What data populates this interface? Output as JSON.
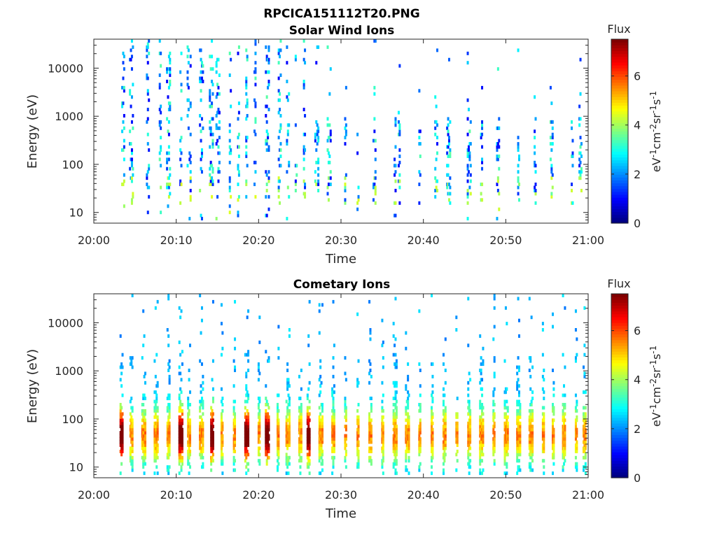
{
  "figure": {
    "filename_title": "RPCICA151112T20.PNG"
  },
  "chart_data": [
    {
      "type": "heatmap",
      "title": "Solar Wind Ions",
      "xlabel": "Time",
      "ylabel": "Energy (eV)",
      "y_scale": "log",
      "ylim": [
        6,
        40000
      ],
      "xlim": [
        "20:00",
        "21:00"
      ],
      "x_ticks": [
        "20:00",
        "20:10",
        "20:20",
        "20:30",
        "20:40",
        "20:50",
        "21:00"
      ],
      "y_ticks": [
        "10",
        "100",
        "1000",
        "10000"
      ],
      "colorbar": {
        "label": "Flux",
        "unit_label": "eV-1cm-2sr-1s-1",
        "range": [
          0,
          7.5
        ],
        "ticks": [
          "0",
          "2",
          "4",
          "6"
        ],
        "colormap": "jet"
      },
      "activity_minutes": [
        3.5,
        4.5,
        6.5,
        8,
        9,
        10.5,
        11.5,
        13,
        14.2,
        15,
        16.5,
        17.5,
        18.5,
        19.5,
        21,
        22.5,
        23.5,
        24.5,
        25.5,
        27,
        28.5,
        30.5,
        32,
        34,
        36.5,
        37,
        39.5,
        41.5,
        43,
        45.5,
        47,
        49,
        51.5,
        53.5,
        55.5,
        58,
        59
      ],
      "notes": "sparse scatter of blue/cyan bins from 20:03 to 20:27 up to ~30000 eV, intermittent vertical streaks afterwards"
    },
    {
      "type": "heatmap",
      "title": "Cometary Ions",
      "xlabel": "Time",
      "ylabel": "Energy (eV)",
      "y_scale": "log",
      "ylim": [
        6,
        40000
      ],
      "xlim": [
        "20:00",
        "21:00"
      ],
      "x_ticks": [
        "20:00",
        "20:10",
        "20:20",
        "20:30",
        "20:40",
        "20:50",
        "21:00"
      ],
      "y_ticks": [
        "10",
        "100",
        "1000",
        "10000"
      ],
      "colorbar": {
        "label": "Flux",
        "unit_label": "eV-1cm-2sr-1s-1",
        "range": [
          0,
          7.5
        ],
        "ticks": [
          "0",
          "2",
          "4",
          "6"
        ],
        "colormap": "jet"
      },
      "activity_minutes": [
        3.3,
        4.5,
        6,
        7.5,
        9,
        10.5,
        11.5,
        13,
        14.3,
        15.5,
        17,
        18.5,
        20,
        21,
        22.3,
        23.5,
        25,
        26,
        27.5,
        29,
        30.5,
        32,
        33.5,
        35,
        36.5,
        38,
        39.5,
        41,
        42.5,
        44,
        45.5,
        47,
        48.5,
        50,
        51.5,
        53,
        54.5,
        55.7,
        57,
        58.5,
        59.5
      ],
      "peak_minutes": [
        3.3,
        10.5,
        14.3,
        18.5,
        21,
        26
      ],
      "notes": "periodic vertical streaks every ~1.5 min between ~10 and ~2000 eV, peak flux (red) near 40-60 eV"
    }
  ]
}
